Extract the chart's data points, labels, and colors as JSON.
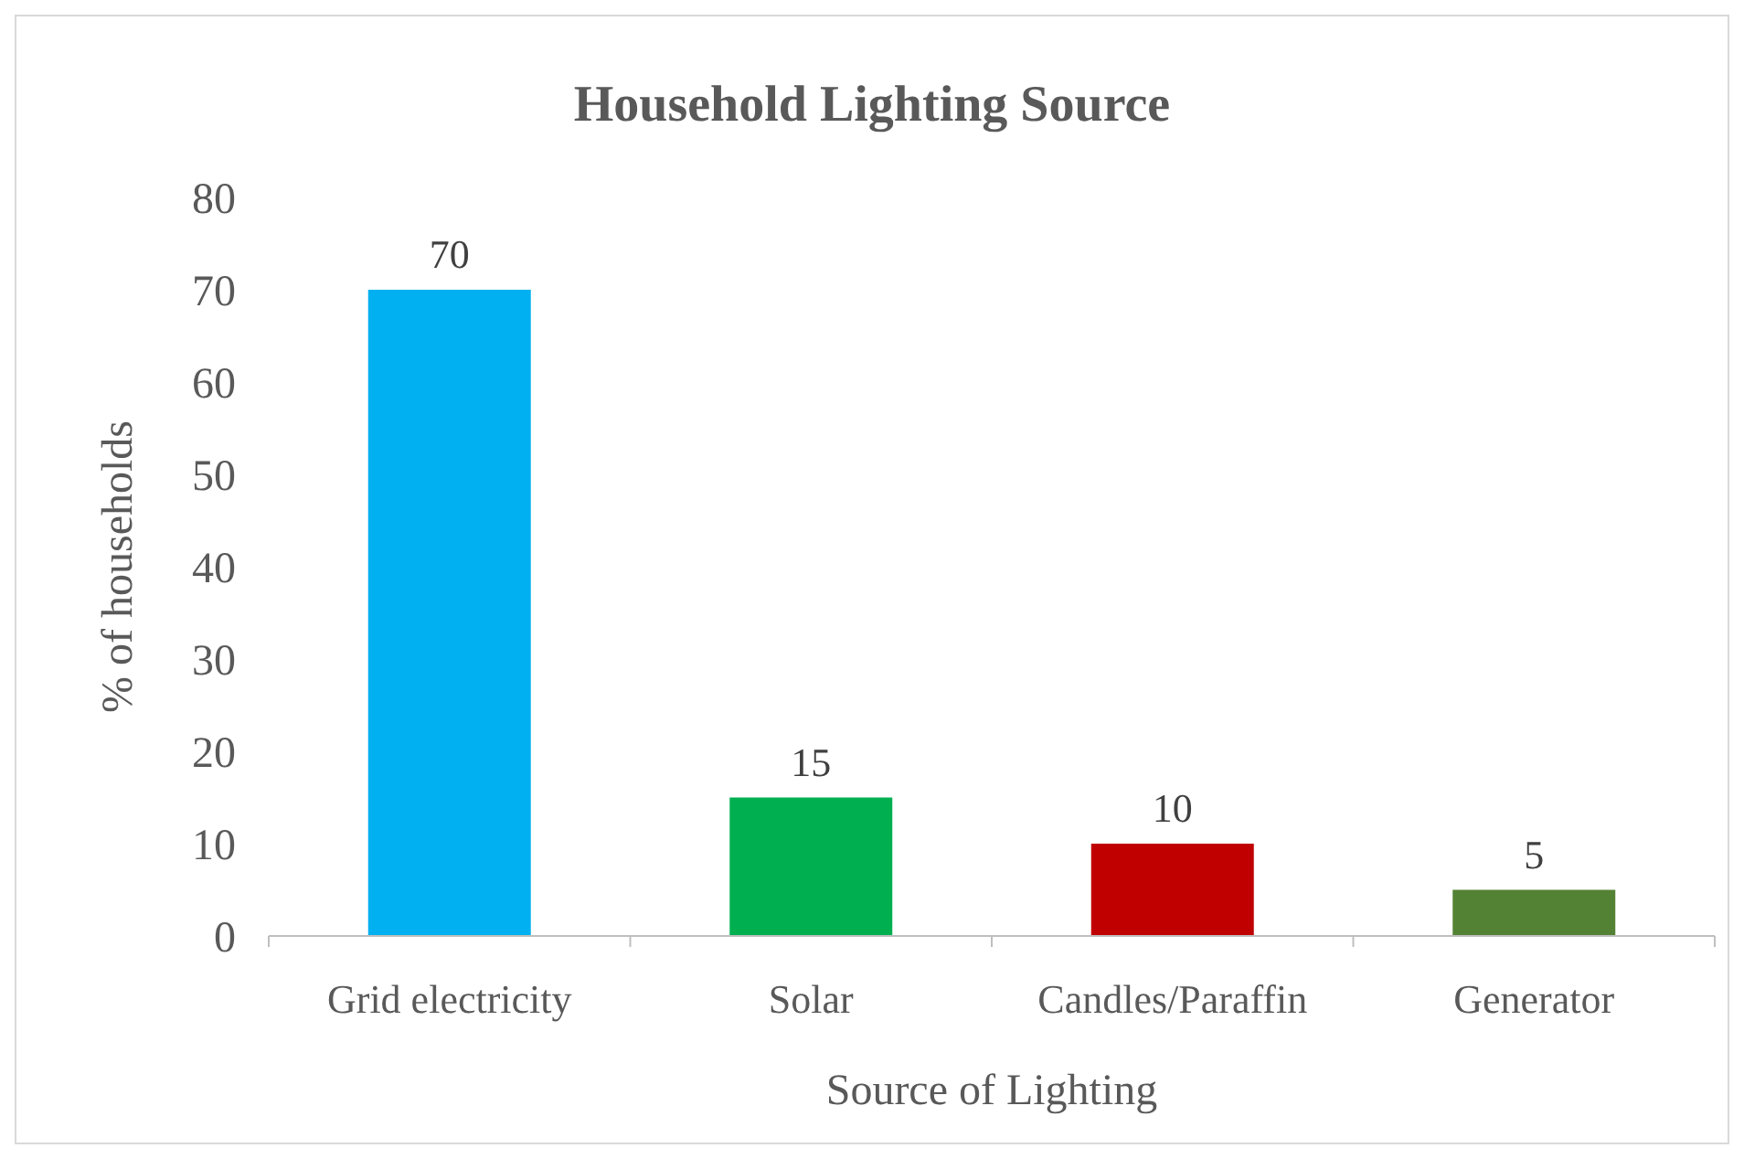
{
  "chart_data": {
    "type": "bar",
    "title": "Household Lighting Source",
    "xlabel": "Source of Lighting",
    "ylabel": "%  of households",
    "categories": [
      "Grid electricity",
      "Solar",
      "Candles/Paraffin",
      "Generator"
    ],
    "values": [
      70,
      15,
      10,
      5
    ],
    "colors": [
      "#00b0f0",
      "#00b050",
      "#c00000",
      "#548235"
    ],
    "ylim": [
      0,
      80
    ],
    "yticks": [
      0,
      10,
      20,
      30,
      40,
      50,
      60,
      70,
      80
    ],
    "grid": false,
    "data_labels": true
  }
}
